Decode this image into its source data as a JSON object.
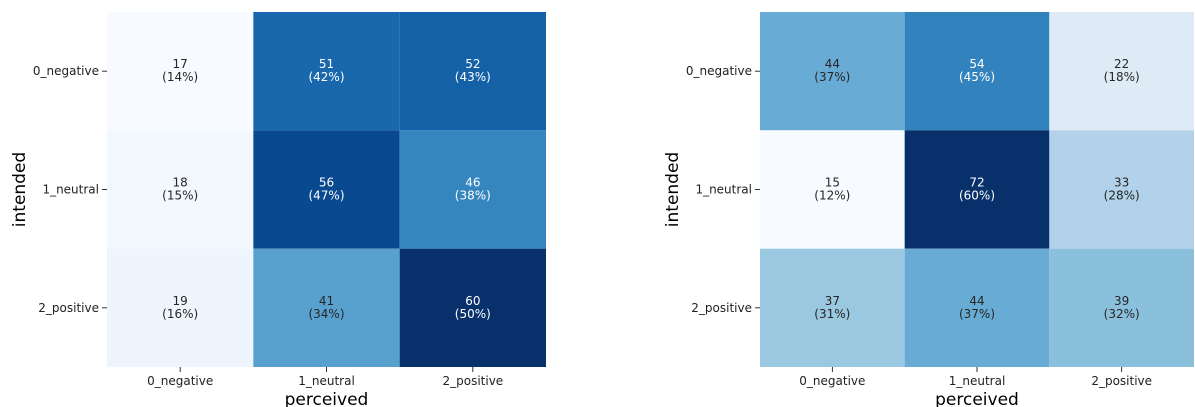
{
  "chart_data": [
    {
      "type": "heatmap",
      "xlabel": "perceived",
      "ylabel": "intended",
      "x_categories": [
        "0_negative",
        "1_neutral",
        "2_positive"
      ],
      "y_categories": [
        "0_negative",
        "1_neutral",
        "2_positive"
      ],
      "colormap": "Blues",
      "values": [
        [
          17,
          51,
          52
        ],
        [
          18,
          56,
          46
        ],
        [
          19,
          41,
          60
        ]
      ],
      "percent_labels": [
        [
          "(14%)",
          "(42%)",
          "(43%)"
        ],
        [
          "(15%)",
          "(47%)",
          "(38%)"
        ],
        [
          "(16%)",
          "(34%)",
          "(50%)"
        ]
      ]
    },
    {
      "type": "heatmap",
      "xlabel": "perceived",
      "ylabel": "intended",
      "x_categories": [
        "0_negative",
        "1_neutral",
        "2_positive"
      ],
      "y_categories": [
        "0_negative",
        "1_neutral",
        "2_positive"
      ],
      "colormap": "Blues",
      "values": [
        [
          44,
          54,
          22
        ],
        [
          15,
          72,
          33
        ],
        [
          37,
          44,
          39
        ]
      ],
      "percent_labels": [
        [
          "(37%)",
          "(45%)",
          "(18%)"
        ],
        [
          "(12%)",
          "(60%)",
          "(28%)"
        ],
        [
          "(31%)",
          "(37%)",
          "(32%)"
        ]
      ]
    }
  ]
}
